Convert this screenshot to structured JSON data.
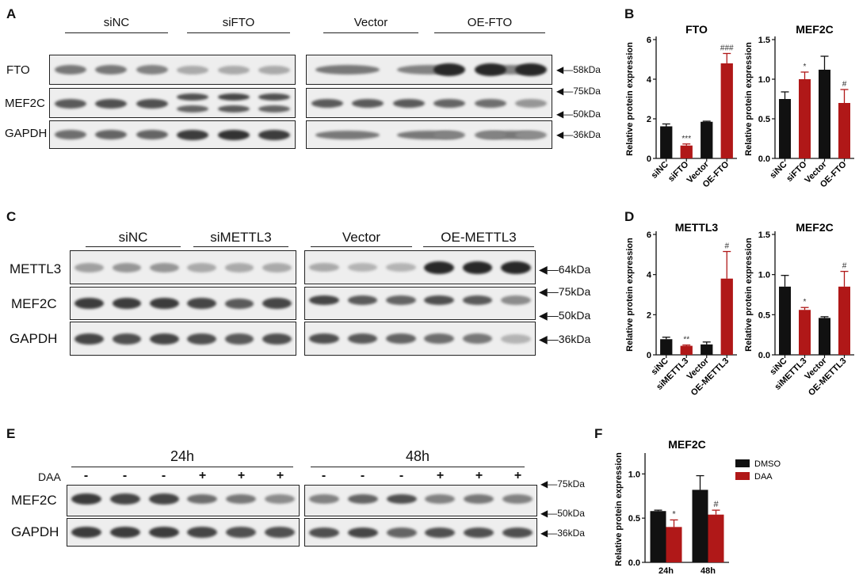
{
  "panels": {
    "A": {
      "label": "A",
      "groups": [
        "siNC",
        "siFTO",
        "Vector",
        "OE-FTO"
      ],
      "rows": [
        "FTO",
        "MEF2C",
        "GAPDH"
      ],
      "markers": [
        "58kDa",
        "75kDa",
        "50kDa",
        "36kDa"
      ]
    },
    "B": {
      "label": "B"
    },
    "C": {
      "label": "C",
      "groups": [
        "siNC",
        "siMETTL3",
        "Vector",
        "OE-METTL3"
      ],
      "rows": [
        "METTL3",
        "MEF2C",
        "GAPDH"
      ],
      "markers": [
        "64kDa",
        "75kDa",
        "50kDa",
        "36kDa"
      ]
    },
    "D": {
      "label": "D"
    },
    "E": {
      "label": "E",
      "groups": [
        "24h",
        "48h"
      ],
      "treatment_label": "DAA",
      "signs": [
        "-",
        "-",
        "-",
        "+",
        "+",
        "+",
        "-",
        "-",
        "-",
        "+",
        "+",
        "+"
      ],
      "rows": [
        "MEF2C",
        "GAPDH"
      ],
      "markers": [
        "75kDa",
        "50kDa",
        "36kDa"
      ]
    },
    "F": {
      "label": "F"
    }
  },
  "chart_data": [
    {
      "type": "bar",
      "title": "FTO",
      "ylabel": "Relative protein expression",
      "categories": [
        "siNC",
        "siFTO",
        "Vector",
        "OE-FTO"
      ],
      "values": [
        1.62,
        0.65,
        1.85,
        4.8
      ],
      "errors": [
        0.12,
        0.08,
        0.03,
        0.5
      ],
      "colors": [
        "#111111",
        "#b01818",
        "#111111",
        "#b01818"
      ],
      "annotations": [
        "",
        "***",
        "",
        "###"
      ],
      "ylim": [
        0,
        6
      ],
      "yticks": [
        0,
        2,
        4,
        6
      ]
    },
    {
      "type": "bar",
      "title": "MEF2C",
      "ylabel": "Relative protein expression",
      "categories": [
        "siNC",
        "siFTO",
        "Vector",
        "OE-FTO"
      ],
      "values": [
        0.75,
        1.0,
        1.12,
        0.7
      ],
      "errors": [
        0.09,
        0.09,
        0.17,
        0.17
      ],
      "colors": [
        "#111111",
        "#b01818",
        "#111111",
        "#b01818"
      ],
      "annotations": [
        "",
        "*",
        "",
        "#"
      ],
      "ylim": [
        0,
        1.5
      ],
      "yticks": [
        0.0,
        0.5,
        1.0,
        1.5
      ]
    },
    {
      "type": "bar",
      "title": "METTL3",
      "ylabel": "Relative protein expression",
      "categories": [
        "siNC",
        "siMETTL3",
        "Vector",
        "OE-METTL3"
      ],
      "values": [
        0.78,
        0.45,
        0.52,
        3.8
      ],
      "errors": [
        0.1,
        0.04,
        0.12,
        1.35
      ],
      "colors": [
        "#111111",
        "#b01818",
        "#111111",
        "#b01818"
      ],
      "annotations": [
        "",
        "**",
        "",
        "#"
      ],
      "ylim": [
        0,
        6
      ],
      "yticks": [
        0,
        2,
        4,
        6
      ]
    },
    {
      "type": "bar",
      "title": "MEF2C",
      "ylabel": "Relative protein expression",
      "categories": [
        "siNC",
        "siMETTL3",
        "Vector",
        "OE-METTL3"
      ],
      "values": [
        0.85,
        0.56,
        0.46,
        0.85
      ],
      "errors": [
        0.14,
        0.03,
        0.015,
        0.19
      ],
      "colors": [
        "#111111",
        "#b01818",
        "#111111",
        "#b01818"
      ],
      "annotations": [
        "",
        "*",
        "",
        "#"
      ],
      "ylim": [
        0,
        1.5
      ],
      "yticks": [
        0.0,
        0.5,
        1.0,
        1.5
      ]
    },
    {
      "type": "bar",
      "title": "MEF2C",
      "ylabel": "Relative protein expression",
      "categories": [
        "24h",
        "48h"
      ],
      "series": [
        {
          "name": "DMSO",
          "color": "#111111",
          "values": [
            0.58,
            0.82
          ],
          "errors": [
            0.01,
            0.16
          ],
          "annotations": [
            "",
            ""
          ]
        },
        {
          "name": "DAA",
          "color": "#b01818",
          "values": [
            0.4,
            0.54
          ],
          "errors": [
            0.08,
            0.05
          ],
          "annotations": [
            "*",
            "#"
          ]
        }
      ],
      "ylim": [
        0,
        1.2
      ],
      "yticks": [
        0.0,
        0.5,
        1.0
      ],
      "legend": "top-right"
    }
  ]
}
